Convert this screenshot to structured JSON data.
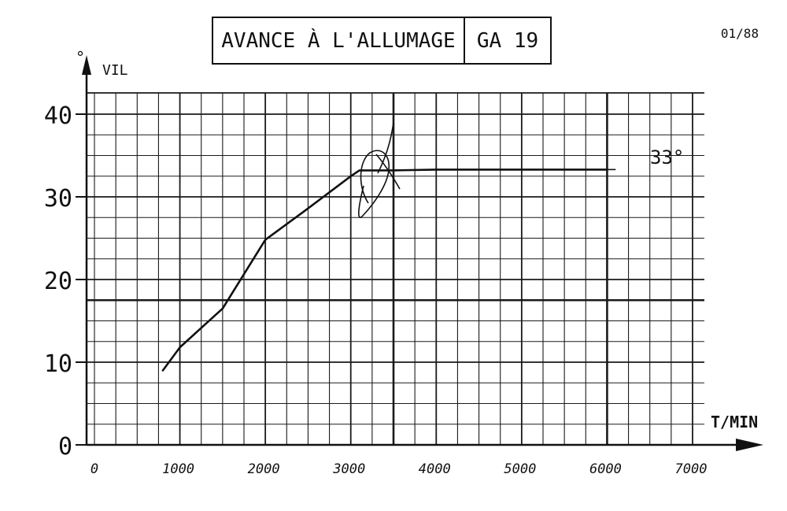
{
  "header": {
    "title": "AVANCE À L'ALLUMAGE",
    "model": "GA 19",
    "date": "01/88"
  },
  "chart_data": {
    "type": "line",
    "title": "AVANCE À L'ALLUMAGE",
    "ylabel_unit": "°",
    "ylabel": "VIL",
    "xlabel": "T/MIN",
    "xlim": [
      0,
      7000
    ],
    "ylim": [
      0,
      40
    ],
    "x_ticks": [
      "0",
      "1000",
      "2000",
      "3000",
      "4000",
      "5000",
      "6000",
      "7000"
    ],
    "y_ticks": [
      "0",
      "10",
      "20",
      "30",
      "40"
    ],
    "grid": true,
    "series": [
      {
        "x": [
          800,
          1000,
          1500,
          2000,
          2500,
          3000,
          3100,
          3500,
          4000,
          5000,
          6000
        ],
        "y": [
          9,
          11.8,
          16.5,
          24.8,
          28.6,
          32.5,
          33.2,
          33.2,
          33.3,
          33.3,
          33.3
        ]
      }
    ],
    "annotations": [
      {
        "text": "33°",
        "x": 6300,
        "y": 33
      }
    ],
    "colors": {
      "ink": "#111111",
      "grid": "#1a1a1a"
    }
  }
}
